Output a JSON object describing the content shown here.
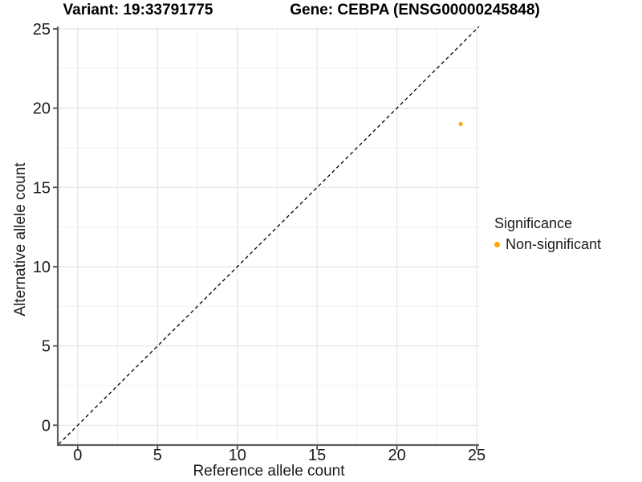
{
  "chart_data": {
    "type": "scatter",
    "title_left": "Variant: 19:33791775",
    "title_right": "Gene: CEBPA (ENSG00000245848)",
    "xlabel": "Reference allele count",
    "ylabel": "Alternative allele count",
    "x_ticks": [
      0,
      5,
      10,
      15,
      20,
      25
    ],
    "y_ticks": [
      0,
      5,
      10,
      15,
      20,
      25
    ],
    "x_minor_ticks": [
      2.5,
      7.5,
      12.5,
      17.5,
      22.5
    ],
    "y_minor_ticks": [
      2.5,
      7.5,
      12.5,
      17.5,
      22.5
    ],
    "xlim": [
      -1.2,
      25.15
    ],
    "ylim": [
      -1.2,
      25.15
    ],
    "grid": true,
    "reference_line": {
      "slope": 1,
      "intercept": 0,
      "style": "dashed",
      "color": "#000000"
    },
    "series": [
      {
        "name": "Non-significant",
        "color": "#FFA500",
        "points": [
          {
            "x": 24,
            "y": 19
          }
        ]
      }
    ],
    "legend": {
      "title": "Significance",
      "position": "right",
      "items": [
        {
          "label": "Non-significant",
          "color": "#FFA500"
        }
      ]
    }
  },
  "style": {
    "background": "#FFFFFF",
    "grid_major": "#E4E4E4",
    "grid_minor": "#F0F0F0",
    "axis_line": "#5F5F5F",
    "tick_mark": "#4D4D4D",
    "tick_label_color": "#1B1B1B",
    "tick_label_size": 20
  }
}
